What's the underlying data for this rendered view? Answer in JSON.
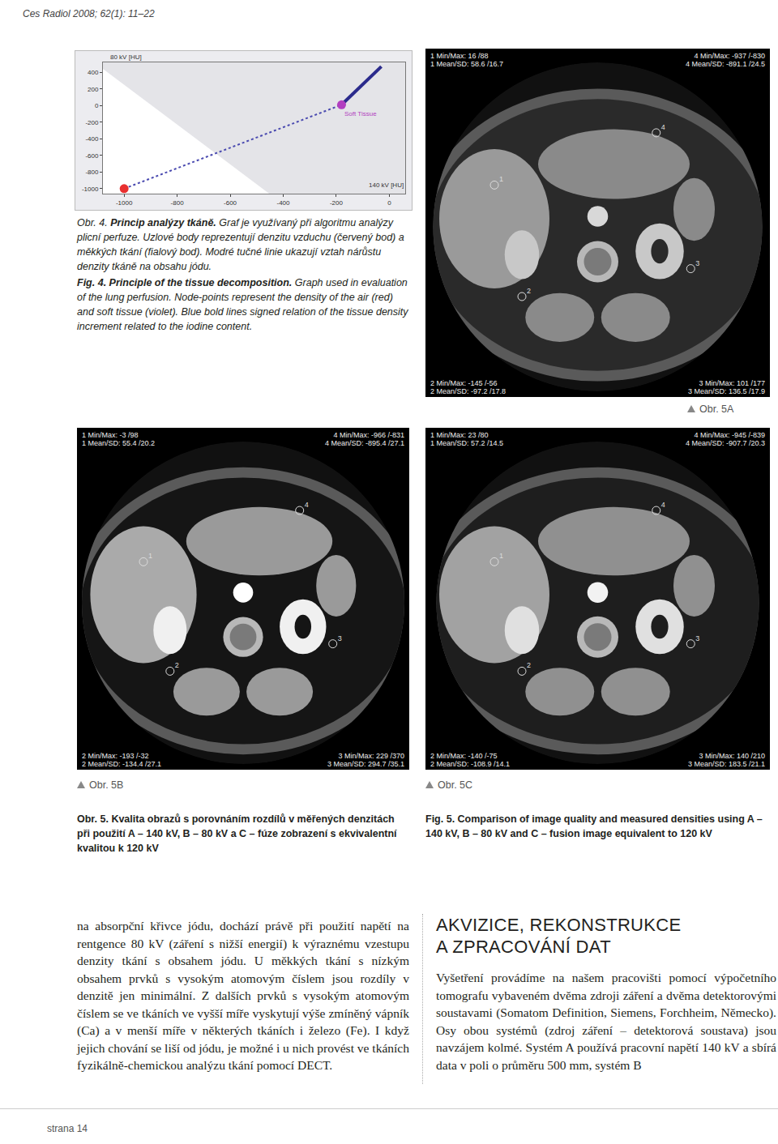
{
  "header": "Ces Radiol 2008; 62(1): 11–22",
  "chart_data": {
    "type": "scatter",
    "ylabel": "80 kV [HU]",
    "xlabel": "140 kV [HU]",
    "xlim": [
      -1080,
      60
    ],
    "ylim": [
      -1060,
      520
    ],
    "xticks": [
      -1000,
      -800,
      -600,
      -400,
      -200,
      0
    ],
    "yticks": [
      -1000,
      -800,
      -600,
      -400,
      -200,
      0,
      200,
      400
    ],
    "grid": false,
    "series": [
      {
        "type": "line",
        "line_style": "dotted",
        "color": "#4a4ab0",
        "x": [
          -1000,
          -180
        ],
        "y": [
          -1000,
          10
        ]
      },
      {
        "type": "line",
        "line_style": "solid",
        "color": "#2b2b8c",
        "x": [
          -180,
          -30
        ],
        "y": [
          10,
          470
        ]
      },
      {
        "type": "scatter",
        "marker": "circle",
        "color": "#e83030",
        "x": [
          -1000
        ],
        "y": [
          -1000
        ]
      },
      {
        "type": "scatter",
        "marker": "circle",
        "color": "#b23fc0",
        "x": [
          -180
        ],
        "y": [
          10
        ]
      }
    ],
    "annotations": [
      {
        "text": "Soft Tissue",
        "x": -175,
        "y": -35
      }
    ]
  },
  "figure4_caption": {
    "cz_label": "Obr. 4.",
    "cz_title": "Princip analýzy tkáně.",
    "cz_text": "Graf je využívaný při algoritmu analýzy plicní perfuze. Uzlové body reprezentují denzitu vzduchu (červený bod) a měkkých tkání (fialový bod). Modré tučné linie ukazují vztah nárůstu denzity tkáně na obsahu jódu.",
    "en_title": "Fig. 4. Principle of the tissue decomposition.",
    "en_text": "Graph used in evaluation of the lung perfusion. Node-points represent the density of the air (red) and soft tissue (violet). Blue bold lines signed relation of the tissue density increment related to the iodine content."
  },
  "figure5": {
    "images": [
      {
        "label": "Obr. 5A",
        "contrast": "A",
        "top_left": [
          "1 Min/Max: 16 /88",
          "1 Mean/SD: 58.6 /16.7"
        ],
        "top_right": [
          "4 Min/Max: -937 /-830",
          "4 Mean/SD: -891.1 /24.5"
        ],
        "bottom_left": [
          "2 Min/Max: -145 /-56",
          "2 Mean/SD: -97.2 /17.8"
        ],
        "bottom_right": [
          "3 Min/Max: 101 /177",
          "3 Mean/SD: 136.5 /17.9"
        ]
      },
      {
        "label": "Obr. 5B",
        "contrast": "B",
        "top_left": [
          "1 Min/Max: -3 /98",
          "1 Mean/SD: 55.4 /20.2"
        ],
        "top_right": [
          "4 Min/Max: -966 /-831",
          "4 Mean/SD: -895.4 /27.1"
        ],
        "bottom_left": [
          "2 Min/Max: -193 /-32",
          "2 Mean/SD: -134.4 /27.1"
        ],
        "bottom_right": [
          "3 Min/Max: 229 /370",
          "3 Mean/SD: 294.7 /35.1"
        ]
      },
      {
        "label": "Obr. 5C",
        "contrast": "C",
        "top_left": [
          "1 Min/Max: 23 /80",
          "1 Mean/SD: 57.2 /14.5"
        ],
        "top_right": [
          "4 Min/Max: -945 /-839",
          "4 Mean/SD: -907.7 /20.3"
        ],
        "bottom_left": [
          "2 Min/Max: -140 /-75",
          "2 Mean/SD: -108.9 /14.1"
        ],
        "bottom_right": [
          "3 Min/Max: 140 /210",
          "3 Mean/SD: 183.5 /21.1"
        ]
      }
    ],
    "roi_labels": [
      "1",
      "2",
      "3",
      "4"
    ],
    "caption_cz": "Obr. 5. Kvalita obrazů s porovnáním rozdílů v měřených denzitách při použití A – 140 kV, B – 80 kV a C – fúze zobrazení s ekvivalentní kvalitou k 120 kV",
    "caption_en": "Fig. 5. Comparison of image quality and measured densities using A – 140 kV, B – 80 kV and C – fusion image equivalent to 120 kV"
  },
  "body": {
    "left_column": "na absorpční křivce jódu, dochází právě při použití napětí na rentgence 80 kV (záření s nižší energií) k výraznému vzestupu denzity tkání s obsahem jódu. U měkkých tkání s nízkým obsahem prvků s vysokým atomovým číslem jsou rozdíly v denzitě jen minimální. Z dalších prvků s vysokým atomovým číslem se ve tkáních ve vyšší míře vyskytují výše zmíněný vápník (Ca) a v menší míře v některých tkáních i železo (Fe). I když jejich chování se liší od jódu, je možné i u nich provést ve tkáních fyzikálně-chemickou analýzu tkání pomocí DECT.",
    "heading": [
      "AKVIZICE, REKONSTRUKCE",
      "A ZPRACOVÁNÍ DAT"
    ],
    "right_column": "Vyšetření provádíme na našem pracovišti pomocí výpočetního tomografu vybaveném dvěma zdroji záření a dvěma detektorovými soustavami (Somatom Definition, Siemens, Forchheim, Německo). Osy obou systémů (zdroj záření – detektorová soustava) jsou navzájem kolmé. Systém A používá pracovní napětí 140 kV a sbírá data v poli o průměru 500 mm, systém B"
  },
  "footer": "strana 14"
}
